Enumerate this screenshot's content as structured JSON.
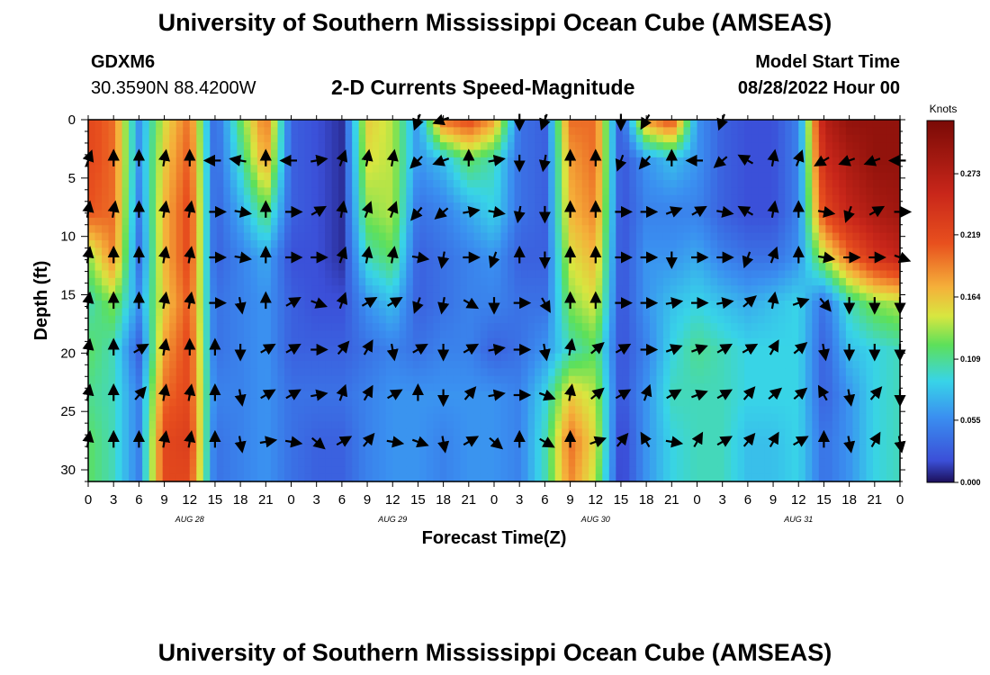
{
  "header": {
    "main_title": "University of Southern Mississippi Ocean Cube (AMSEAS)",
    "station": "GDXM6",
    "coords": "30.3590N  88.4200W",
    "plot_title": "2-D Currents Speed-Magnitude",
    "model_start_label": "Model Start Time",
    "model_start_value": "08/28/2022 Hour 00"
  },
  "footer": {
    "main_title": "University of Southern Mississippi Ocean Cube (AMSEAS)"
  },
  "chart_data": {
    "type": "heatmap",
    "title": "2-D Currents Speed-Magnitude",
    "xlabel": "Forecast Time(Z)",
    "ylabel": "Depth (ft)",
    "xlim": [
      0,
      96
    ],
    "ylim": [
      31,
      0
    ],
    "x_ticks": [
      {
        "v": 0,
        "label": "0"
      },
      {
        "v": 3,
        "label": "3"
      },
      {
        "v": 6,
        "label": "6"
      },
      {
        "v": 9,
        "label": "9"
      },
      {
        "v": 12,
        "label": "12"
      },
      {
        "v": 15,
        "label": "15"
      },
      {
        "v": 18,
        "label": "18"
      },
      {
        "v": 21,
        "label": "21"
      },
      {
        "v": 24,
        "label": "0"
      },
      {
        "v": 27,
        "label": "3"
      },
      {
        "v": 30,
        "label": "6"
      },
      {
        "v": 33,
        "label": "9"
      },
      {
        "v": 36,
        "label": "12"
      },
      {
        "v": 39,
        "label": "15"
      },
      {
        "v": 42,
        "label": "18"
      },
      {
        "v": 45,
        "label": "21"
      },
      {
        "v": 48,
        "label": "0"
      },
      {
        "v": 51,
        "label": "3"
      },
      {
        "v": 54,
        "label": "6"
      },
      {
        "v": 57,
        "label": "9"
      },
      {
        "v": 60,
        "label": "12"
      },
      {
        "v": 63,
        "label": "15"
      },
      {
        "v": 66,
        "label": "18"
      },
      {
        "v": 69,
        "label": "21"
      },
      {
        "v": 72,
        "label": "0"
      },
      {
        "v": 75,
        "label": "3"
      },
      {
        "v": 78,
        "label": "6"
      },
      {
        "v": 81,
        "label": "9"
      },
      {
        "v": 84,
        "label": "12"
      },
      {
        "v": 87,
        "label": "15"
      },
      {
        "v": 90,
        "label": "18"
      },
      {
        "v": 93,
        "label": "21"
      },
      {
        "v": 96,
        "label": "0"
      }
    ],
    "day_labels": [
      {
        "v": 12,
        "label": "AUG 28"
      },
      {
        "v": 36,
        "label": "AUG 29"
      },
      {
        "v": 60,
        "label": "AUG 30"
      },
      {
        "v": 84,
        "label": "AUG 31"
      }
    ],
    "y_ticks": [
      {
        "v": 0,
        "label": "0"
      },
      {
        "v": 5,
        "label": "5"
      },
      {
        "v": 10,
        "label": "10"
      },
      {
        "v": 15,
        "label": "15"
      },
      {
        "v": 20,
        "label": "20"
      },
      {
        "v": 25,
        "label": "25"
      },
      {
        "v": 30,
        "label": "30"
      }
    ],
    "colorbar": {
      "title": "Knots",
      "min": 0,
      "max": 0.32,
      "ticks": [
        {
          "v": 0.0,
          "label": "0.000"
        },
        {
          "v": 0.055,
          "label": "0.055"
        },
        {
          "v": 0.109,
          "label": "0.109"
        },
        {
          "v": 0.164,
          "label": "0.164"
        },
        {
          "v": 0.219,
          "label": "0.219"
        },
        {
          "v": 0.273,
          "label": "0.273"
        }
      ]
    },
    "depths": [
      0,
      3.5,
      7.9,
      11.8,
      15.7,
      19.7,
      23.6,
      27.6,
      31
    ],
    "times": [
      0,
      3,
      6,
      9,
      12,
      15,
      18,
      21,
      24,
      27,
      30,
      33,
      36,
      39,
      42,
      45,
      48,
      51,
      54,
      57,
      60,
      63,
      66,
      69,
      72,
      75,
      78,
      81,
      84,
      87,
      90,
      93,
      96
    ],
    "speed": [
      [
        0.22,
        0.2,
        0.06,
        0.15,
        0.2,
        0.03,
        0.12,
        0.2,
        0.03,
        0.02,
        0.01,
        0.16,
        0.14,
        0.06,
        0.2,
        0.22,
        0.18,
        0.04,
        0.03,
        0.2,
        0.2,
        0.02,
        0.18,
        0.22,
        0.06,
        0.03,
        0.02,
        0.02,
        0.05,
        0.27,
        0.3,
        0.3,
        0.3
      ],
      [
        0.22,
        0.2,
        0.06,
        0.16,
        0.21,
        0.03,
        0.1,
        0.18,
        0.03,
        0.02,
        0.01,
        0.15,
        0.14,
        0.06,
        0.08,
        0.12,
        0.1,
        0.04,
        0.03,
        0.18,
        0.2,
        0.02,
        0.06,
        0.08,
        0.06,
        0.03,
        0.02,
        0.02,
        0.05,
        0.25,
        0.28,
        0.3,
        0.3
      ],
      [
        0.21,
        0.2,
        0.05,
        0.17,
        0.22,
        0.03,
        0.07,
        0.12,
        0.03,
        0.02,
        0.01,
        0.13,
        0.14,
        0.04,
        0.05,
        0.07,
        0.09,
        0.04,
        0.03,
        0.17,
        0.19,
        0.02,
        0.05,
        0.05,
        0.05,
        0.03,
        0.02,
        0.02,
        0.05,
        0.22,
        0.26,
        0.28,
        0.29
      ],
      [
        0.13,
        0.19,
        0.04,
        0.17,
        0.22,
        0.03,
        0.05,
        0.07,
        0.02,
        0.02,
        0.01,
        0.1,
        0.12,
        0.03,
        0.04,
        0.05,
        0.06,
        0.03,
        0.03,
        0.15,
        0.17,
        0.02,
        0.06,
        0.06,
        0.07,
        0.05,
        0.04,
        0.04,
        0.06,
        0.14,
        0.2,
        0.24,
        0.26
      ],
      [
        0.1,
        0.13,
        0.06,
        0.16,
        0.21,
        0.04,
        0.05,
        0.06,
        0.03,
        0.02,
        0.02,
        0.06,
        0.08,
        0.03,
        0.04,
        0.05,
        0.05,
        0.04,
        0.04,
        0.13,
        0.15,
        0.02,
        0.06,
        0.08,
        0.09,
        0.08,
        0.07,
        0.08,
        0.09,
        0.04,
        0.1,
        0.13,
        0.14
      ],
      [
        0.12,
        0.1,
        0.03,
        0.18,
        0.22,
        0.04,
        0.05,
        0.06,
        0.03,
        0.03,
        0.03,
        0.04,
        0.05,
        0.04,
        0.05,
        0.05,
        0.03,
        0.04,
        0.06,
        0.1,
        0.12,
        0.02,
        0.05,
        0.09,
        0.11,
        0.1,
        0.09,
        0.09,
        0.09,
        0.03,
        0.08,
        0.09,
        0.1
      ],
      [
        0.11,
        0.1,
        0.05,
        0.2,
        0.22,
        0.05,
        0.05,
        0.06,
        0.04,
        0.04,
        0.04,
        0.05,
        0.06,
        0.06,
        0.06,
        0.06,
        0.06,
        0.05,
        0.09,
        0.16,
        0.14,
        0.02,
        0.06,
        0.1,
        0.1,
        0.1,
        0.09,
        0.09,
        0.09,
        0.03,
        0.06,
        0.09,
        0.1
      ],
      [
        0.12,
        0.1,
        0.05,
        0.22,
        0.23,
        0.04,
        0.05,
        0.06,
        0.04,
        0.03,
        0.03,
        0.05,
        0.06,
        0.06,
        0.05,
        0.06,
        0.06,
        0.05,
        0.1,
        0.2,
        0.15,
        0.01,
        0.06,
        0.09,
        0.1,
        0.1,
        0.08,
        0.08,
        0.09,
        0.04,
        0.06,
        0.09,
        0.1
      ],
      [
        0.12,
        0.1,
        0.05,
        0.22,
        0.22,
        0.04,
        0.05,
        0.06,
        0.04,
        0.03,
        0.03,
        0.05,
        0.06,
        0.06,
        0.05,
        0.06,
        0.06,
        0.05,
        0.1,
        0.19,
        0.14,
        0.01,
        0.06,
        0.09,
        0.1,
        0.1,
        0.08,
        0.08,
        0.09,
        0.04,
        0.06,
        0.09,
        0.1
      ]
    ],
    "vector_times": [
      0,
      3,
      6,
      9,
      12,
      15,
      18,
      21,
      24,
      27,
      30,
      33,
      36,
      39,
      42,
      45,
      48,
      51,
      54,
      57,
      60,
      63,
      66,
      69,
      72,
      75,
      78,
      81,
      84,
      87,
      90,
      93,
      96
    ],
    "vector_depths": [
      0,
      3.5,
      7.9,
      11.8,
      15.7,
      19.7,
      23.6,
      27.6
    ],
    "vector_dirs_deg": [
      [
        null,
        null,
        null,
        null,
        null,
        null,
        null,
        null,
        null,
        null,
        null,
        null,
        null,
        200,
        250,
        null,
        null,
        180,
        200,
        null,
        null,
        180,
        210,
        null,
        null,
        200,
        null,
        null,
        null,
        null,
        null,
        null,
        null
      ],
      [
        20,
        0,
        0,
        10,
        0,
        270,
        280,
        0,
        270,
        80,
        20,
        10,
        10,
        225,
        250,
        0,
        80,
        180,
        190,
        0,
        0,
        200,
        220,
        0,
        270,
        230,
        300,
        10,
        20,
        240,
        250,
        250,
        270
      ],
      [
        10,
        10,
        0,
        10,
        10,
        90,
        100,
        0,
        90,
        60,
        10,
        20,
        20,
        220,
        230,
        80,
        100,
        190,
        180,
        0,
        0,
        90,
        90,
        70,
        60,
        100,
        300,
        10,
        0,
        100,
        200,
        60,
        90
      ],
      [
        10,
        0,
        0,
        10,
        10,
        90,
        100,
        0,
        90,
        90,
        20,
        10,
        10,
        100,
        190,
        90,
        200,
        0,
        180,
        0,
        0,
        90,
        90,
        180,
        90,
        90,
        200,
        20,
        0,
        100,
        90,
        90,
        110
      ],
      [
        10,
        0,
        0,
        10,
        10,
        90,
        170,
        0,
        60,
        110,
        20,
        60,
        60,
        200,
        190,
        120,
        180,
        90,
        150,
        0,
        0,
        90,
        90,
        80,
        90,
        80,
        50,
        10,
        70,
        140,
        180,
        180,
        180
      ],
      [
        10,
        0,
        60,
        10,
        0,
        0,
        180,
        60,
        60,
        90,
        40,
        30,
        170,
        60,
        180,
        60,
        80,
        90,
        170,
        10,
        50,
        60,
        90,
        70,
        70,
        60,
        60,
        30,
        50,
        170,
        180,
        180,
        180
      ],
      [
        10,
        0,
        40,
        10,
        10,
        0,
        170,
        60,
        60,
        80,
        20,
        30,
        60,
        0,
        180,
        40,
        80,
        90,
        110,
        10,
        50,
        60,
        20,
        60,
        70,
        60,
        40,
        50,
        50,
        330,
        170,
        40,
        180
      ],
      [
        10,
        0,
        0,
        10,
        10,
        0,
        170,
        80,
        100,
        130,
        60,
        40,
        100,
        110,
        170,
        60,
        130,
        0,
        120,
        0,
        70,
        40,
        330,
        100,
        30,
        60,
        40,
        30,
        60,
        0,
        170,
        30,
        170
      ]
    ]
  }
}
